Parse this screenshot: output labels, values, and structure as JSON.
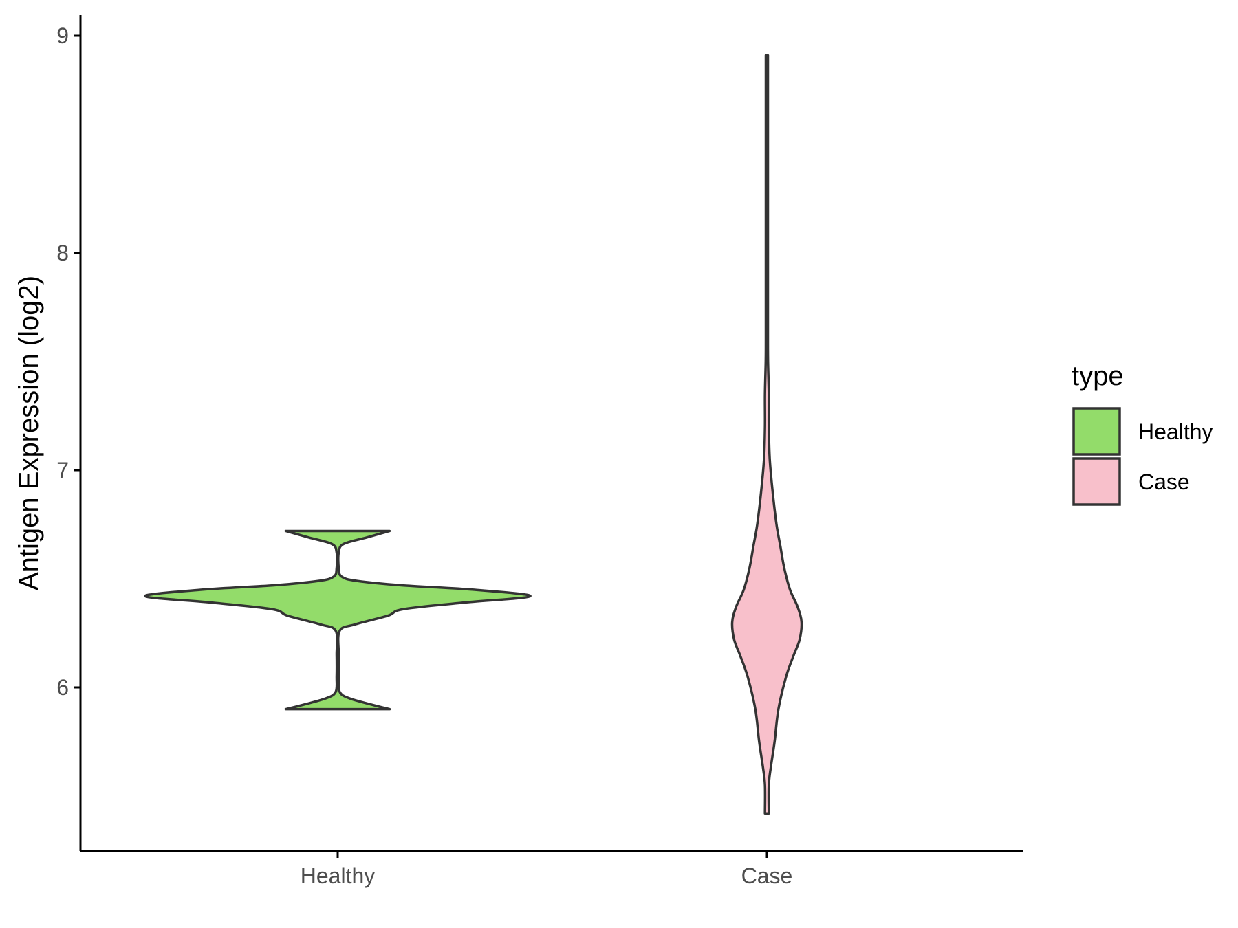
{
  "chart_data": {
    "type": "violin",
    "title": "",
    "xlabel": "",
    "ylabel": "Antigen Expression (log2)",
    "categories": [
      "Healthy",
      "Case"
    ],
    "ylim": [
      5.35,
      9.1
    ],
    "yticks": [
      6,
      7,
      8,
      9
    ],
    "grid": false,
    "legend": {
      "title": "type",
      "position": "right",
      "entries": [
        {
          "label": "Healthy",
          "color": "#93DC6A"
        },
        {
          "label": "Case",
          "color": "#F8C0CB"
        }
      ]
    },
    "series": [
      {
        "category": "Healthy",
        "color": "#93DC6A",
        "min": 5.9,
        "max": 6.72,
        "density": [
          [
            5.9,
            0.27
          ],
          [
            5.92,
            0.18
          ],
          [
            5.95,
            0.06
          ],
          [
            5.98,
            0.01
          ],
          [
            6.05,
            0.0
          ],
          [
            6.15,
            0.0
          ],
          [
            6.26,
            0.01
          ],
          [
            6.29,
            0.09
          ],
          [
            6.33,
            0.26
          ],
          [
            6.36,
            0.34
          ],
          [
            6.39,
            0.65
          ],
          [
            6.42,
            1.0
          ],
          [
            6.45,
            0.7
          ],
          [
            6.47,
            0.33
          ],
          [
            6.49,
            0.1
          ],
          [
            6.51,
            0.02
          ],
          [
            6.55,
            0.0
          ],
          [
            6.62,
            0.0
          ],
          [
            6.66,
            0.03
          ],
          [
            6.69,
            0.15
          ],
          [
            6.72,
            0.27
          ]
        ]
      },
      {
        "category": "Case",
        "color": "#F8C0CB",
        "min": 5.42,
        "max": 8.91,
        "density": [
          [
            5.42,
            0.01
          ],
          [
            5.55,
            0.01
          ],
          [
            5.63,
            0.02
          ],
          [
            5.75,
            0.04
          ],
          [
            5.9,
            0.06
          ],
          [
            6.05,
            0.1
          ],
          [
            6.15,
            0.14
          ],
          [
            6.22,
            0.17
          ],
          [
            6.3,
            0.18
          ],
          [
            6.37,
            0.16
          ],
          [
            6.45,
            0.12
          ],
          [
            6.55,
            0.09
          ],
          [
            6.65,
            0.07
          ],
          [
            6.75,
            0.05
          ],
          [
            6.9,
            0.03
          ],
          [
            7.05,
            0.015
          ],
          [
            7.2,
            0.01
          ],
          [
            7.35,
            0.01
          ],
          [
            7.5,
            0.006
          ],
          [
            7.6,
            0.002
          ],
          [
            7.8,
            0.002
          ],
          [
            8.2,
            0.002
          ],
          [
            8.6,
            0.001
          ],
          [
            8.91,
            0.001
          ]
        ]
      }
    ]
  }
}
